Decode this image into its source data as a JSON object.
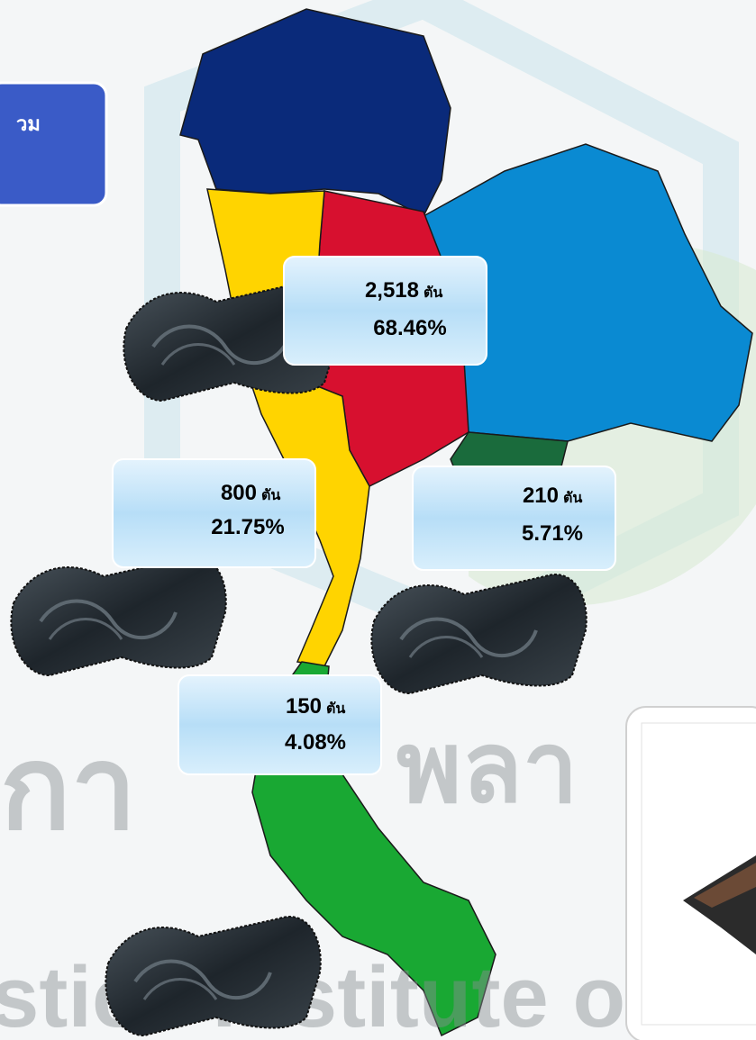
{
  "header": {
    "title_fragment": "วม"
  },
  "callouts": [
    {
      "amount": "2,518",
      "unit": "ตัน",
      "share": "68.46%"
    },
    {
      "amount": "800",
      "unit": "ตัน",
      "share": "21.75%"
    },
    {
      "amount": "210",
      "unit": "ตัน",
      "share": "5.71%"
    },
    {
      "amount": "150",
      "unit": "ตัน",
      "share": "4.08%"
    }
  ],
  "watermark": {
    "thai_left": "กา",
    "thai_right": "พลา",
    "english": "stics Institute of"
  }
}
